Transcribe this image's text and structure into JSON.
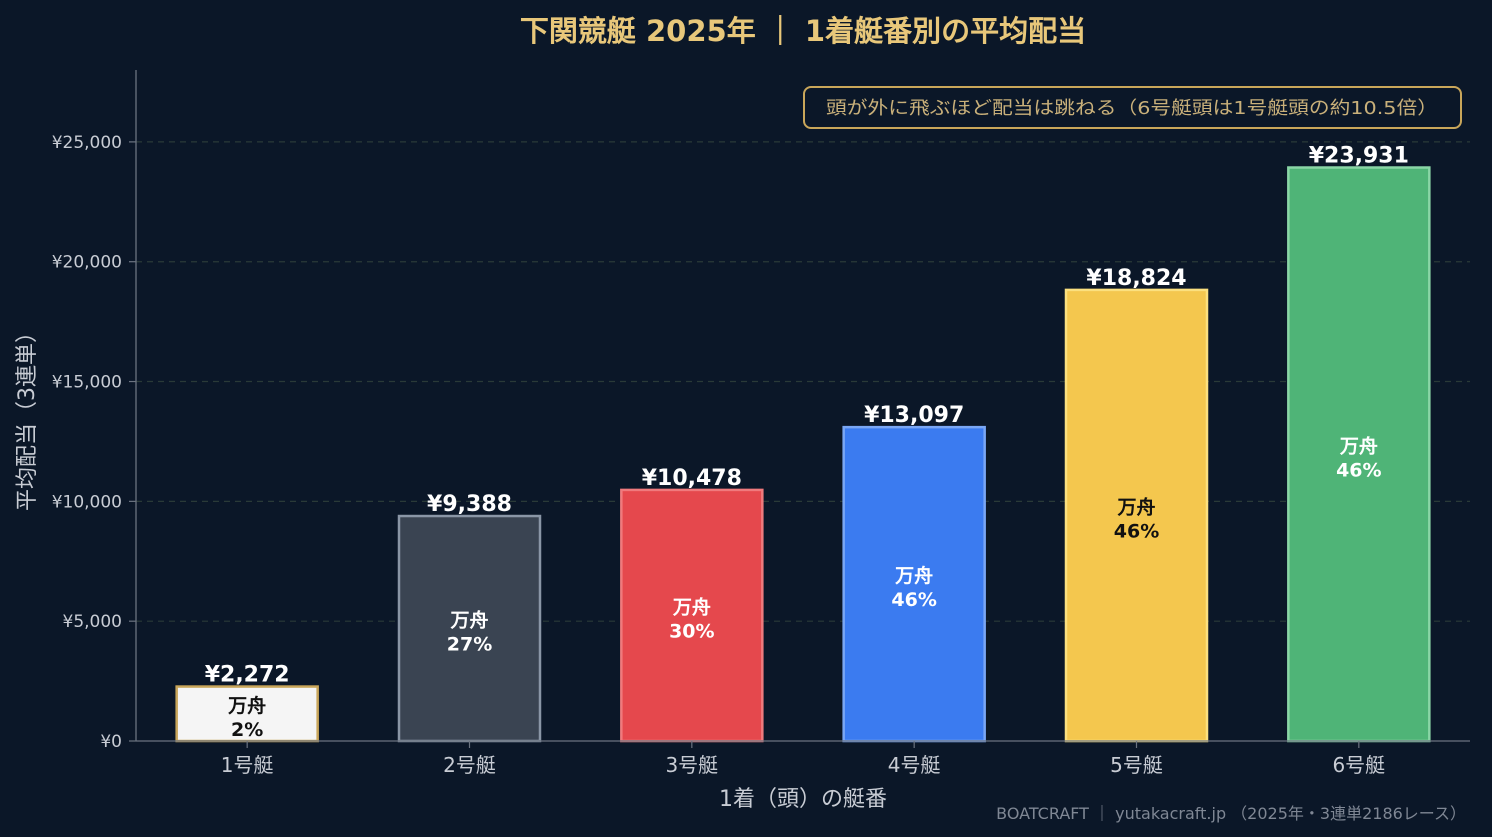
{
  "chart_data": {
    "type": "bar",
    "title": "下関競艇 2025年 ｜ 1着艇番別の平均配当",
    "xlabel": "1着（頭）の艇番",
    "ylabel": "平均配当（3連単）",
    "categories": [
      "1号艇",
      "2号艇",
      "3号艇",
      "4号艇",
      "5号艇",
      "6号艇"
    ],
    "values": [
      2272,
      9388,
      10478,
      13097,
      18824,
      23931
    ],
    "value_labels": [
      "¥2,272",
      "¥9,388",
      "¥10,478",
      "¥13,097",
      "¥18,824",
      "¥23,931"
    ],
    "inner_label_title": "万舟",
    "inner_labels": [
      "2%",
      "27%",
      "30%",
      "46%",
      "46%",
      "46%"
    ],
    "bar_colors": [
      "#f5f5f5",
      "#3a4452",
      "#e5484d",
      "#3b7bf0",
      "#f4c74e",
      "#4fb477"
    ],
    "bar_edge_colors": [
      "#c9a65a",
      "#8a96a6",
      "#f07a7d",
      "#7aa7f5",
      "#fbe07f",
      "#8ad6a6"
    ],
    "inner_text_colors": [
      "#111111",
      "#ffffff",
      "#ffffff",
      "#ffffff",
      "#111111",
      "#ffffff"
    ],
    "ylim": [
      0,
      28000
    ],
    "yticks": [
      0,
      5000,
      10000,
      15000,
      20000,
      25000
    ],
    "ytick_labels": [
      "¥0",
      "¥5,000",
      "¥10,000",
      "¥15,000",
      "¥20,000",
      "¥25,000"
    ],
    "grid": true,
    "annotation": "頭が外に飛ぶほど配当は跳ねる（6号艇頭は1号艇頭の約10.5倍）",
    "annotation_placement": "top-right",
    "footer": "BOATCRAFT ｜ yutakacraft.jp （2025年・3連単2186レース）",
    "colors": {
      "background": "#0b1728",
      "title": "#e8c77a",
      "axis_text": "#c8ccd4",
      "grid": "#2a3a38",
      "annotation_border": "#c9a65a",
      "annotation_text": "#c9b07a",
      "footer_text": "#7f8794",
      "value_label": "#ffffff"
    }
  }
}
